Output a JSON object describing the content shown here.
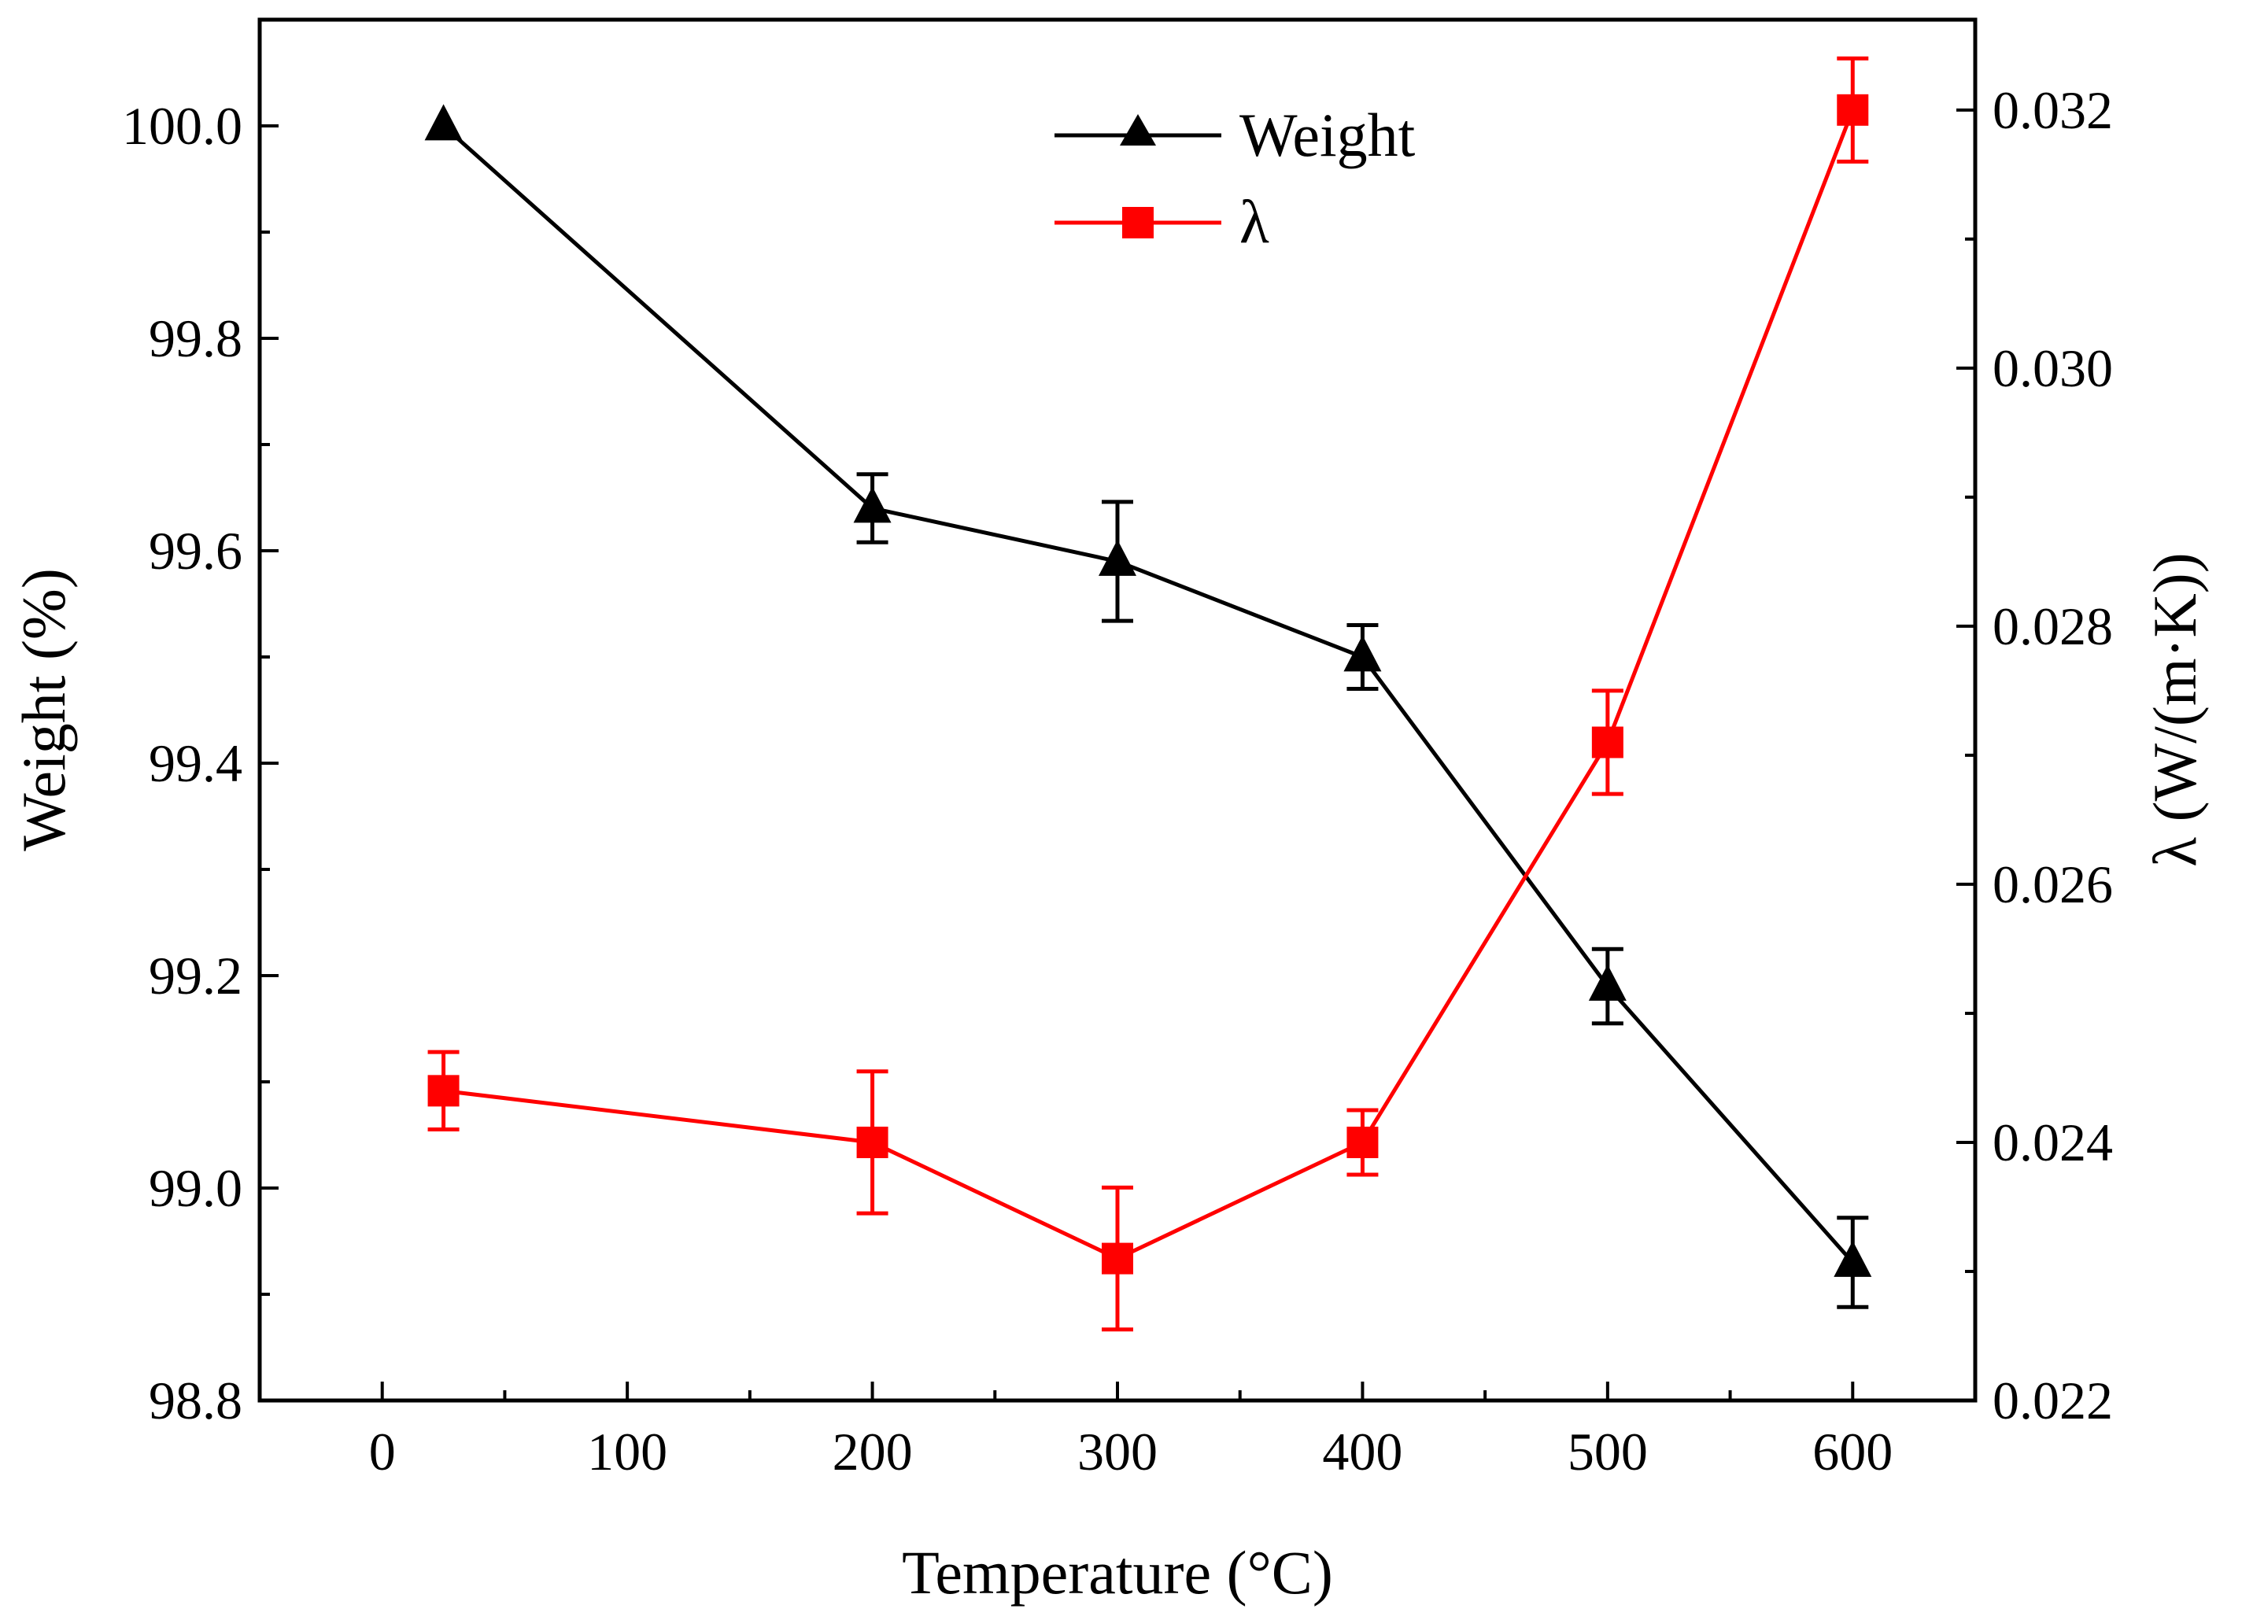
{
  "chart_data": {
    "type": "line",
    "xlabel": "Temperature (°C)",
    "ylabel_left": "Weight (%)",
    "ylabel_right": "λ (W/(m·K))",
    "xlim": [
      -50,
      650
    ],
    "ylim_left": [
      98.8,
      100.1
    ],
    "ylim_right": [
      0.022,
      0.0327
    ],
    "x_ticks": [
      0,
      100,
      200,
      300,
      400,
      500,
      600
    ],
    "x_tick_labels": [
      "0",
      "100",
      "200",
      "300",
      "400",
      "500",
      "600"
    ],
    "y_left_ticks": [
      98.8,
      99.0,
      99.2,
      99.4,
      99.6,
      99.8,
      100.0
    ],
    "y_left_tick_labels": [
      "98.8",
      "99.0",
      "99.2",
      "99.4",
      "99.6",
      "99.8",
      "100.0"
    ],
    "y_right_ticks": [
      0.022,
      0.024,
      0.026,
      0.028,
      0.03,
      0.032
    ],
    "y_right_tick_labels": [
      "0.022",
      "0.024",
      "0.026",
      "0.028",
      "0.030",
      "0.032"
    ],
    "legend_position": "top-center",
    "series": [
      {
        "name": "Weight",
        "axis": "left",
        "color": "#000000",
        "marker": "triangle",
        "x": [
          25,
          200,
          300,
          400,
          500,
          600
        ],
        "y": [
          100.0,
          99.64,
          99.59,
          99.5,
          99.19,
          98.93
        ],
        "error": [
          0.0,
          0.032,
          0.056,
          0.03,
          0.035,
          0.042
        ]
      },
      {
        "name": "λ",
        "axis": "right",
        "color": "#ff0000",
        "marker": "square",
        "x": [
          25,
          200,
          300,
          400,
          500,
          600
        ],
        "y": [
          0.0244,
          0.024,
          0.0231,
          0.024,
          0.0271,
          0.032
        ],
        "error": [
          0.0003,
          0.00055,
          0.00055,
          0.00025,
          0.0004,
          0.0004
        ]
      }
    ]
  }
}
